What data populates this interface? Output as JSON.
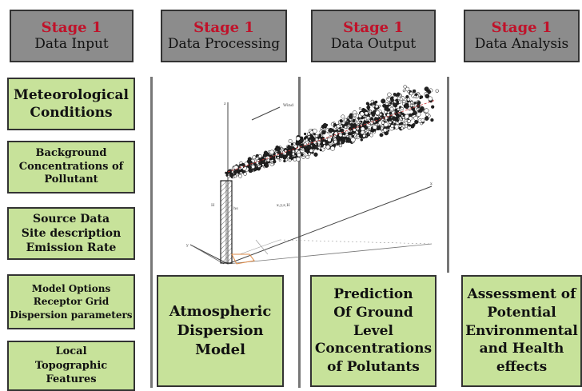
{
  "stages": [
    {
      "number": "Stage 1",
      "name": "Data Input"
    },
    {
      "number": "Stage 1",
      "name": "Data Processing"
    },
    {
      "number": "Stage 1",
      "name": "Data Output"
    },
    {
      "number": "Stage 1",
      "name": "Data Analysis"
    }
  ],
  "inputs": [
    {
      "lines": [
        "Meteorological",
        "Conditions"
      ]
    },
    {
      "lines": [
        "Background",
        "Concentrations of",
        "Pollutant"
      ]
    },
    {
      "lines": [
        "Source Data",
        "Site description",
        "Emission Rate"
      ]
    },
    {
      "lines": [
        "Model Options",
        "Receptor Grid",
        "Dispersion parameters"
      ]
    },
    {
      "lines": [
        "Local",
        "Topographic",
        "Features"
      ]
    }
  ],
  "model_box": {
    "lines": [
      "Atmospheric",
      "Dispersion",
      "Model"
    ]
  },
  "output_box": {
    "lines": [
      "Prediction",
      "Of Ground",
      "Level",
      "Concentrations",
      "of Polutants"
    ]
  },
  "analysis_box": {
    "lines": [
      "Assessment of",
      "Potential",
      "Environmental",
      "and Health",
      "effects"
    ]
  },
  "illustration_labels": {
    "z_axis": "z",
    "wind": "Wind",
    "stack_h": "H",
    "stack_hs": "hs",
    "plume_eq": "x,y,z,H",
    "x_axis": "x",
    "y_axis": "y"
  }
}
